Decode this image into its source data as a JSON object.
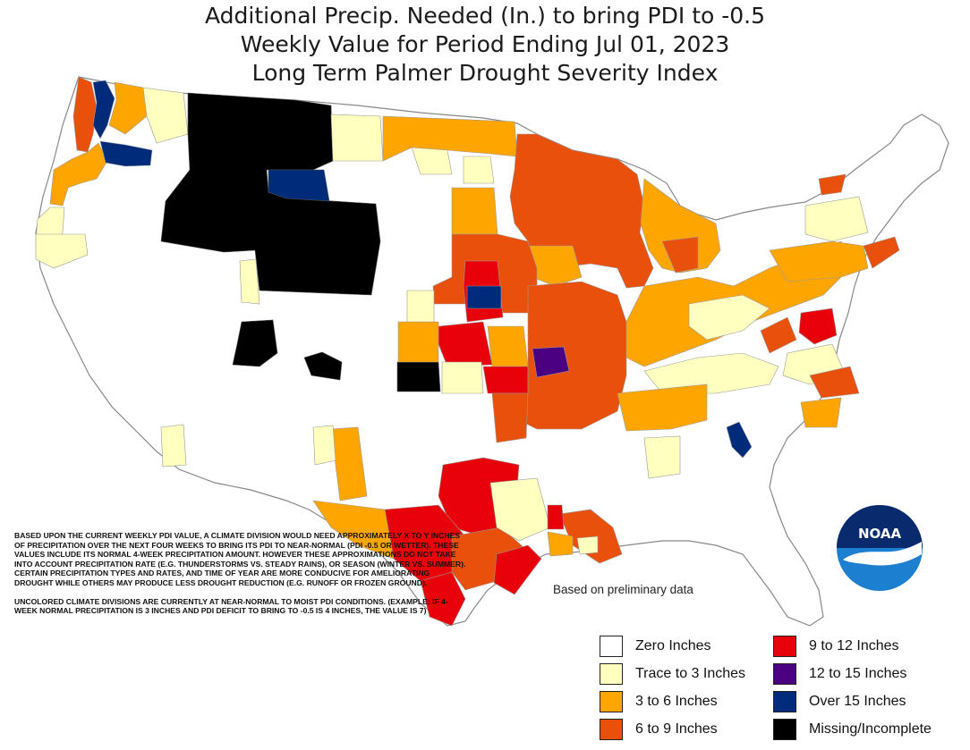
{
  "title": {
    "line1": "Additional Precip. Needed (In.) to bring PDI to -0.5",
    "line2": "Weekly Value for Period Ending Jul 01, 2023",
    "line3": "Long Term Palmer Drought Severity Index"
  },
  "note": {
    "paragraph1": "BASED UPON THE CURRENT WEEKLY PDI VALUE, A CLIMATE DIVISION WOULD NEED APPROXIMATELY X TO Y INCHES OF PRECIPITATION OVER THE NEXT FOUR WEEKS TO BRING ITS PDI TO NEAR-NORMAL (PDI -0.5 OR WETTER). THESE VALUES INCLUDE ITS NORMAL 4-WEEK PRECIPITATION AMOUNT. HOWEVER THESE APPROXIMATIONS DO NOT TAKE INTO ACCOUNT PRECIPITATION RATE (E.G. THUNDERSTORMS VS. STEADY RAINS), OR SEASON (WINTER VS. SUMMER). CERTAIN PRECIPITATION TYPES AND RATES, AND TIME OF YEAR ARE MORE CONDUCIVE FOR AMELIORATING DROUGHT WHILE OTHERS MAY PRODUCE LESS DROUGHT REDUCTION (E.G. RUNOFF OR FROZEN GROUND).",
    "paragraph2": "UNCOLORED CLIMATE DIVISIONS ARE CURRENTLY AT NEAR-NORMAL TO MOIST PDI CONDITIONS. (EXAMPLE: IF 4-WEEK NORMAL PRECIPITATION IS 3 INCHES AND PDI DEFICIT TO BRING TO -0.5 IS 4 INCHES, THE VALUE IS 7)"
  },
  "prelim_note": "Based on preliminary data",
  "logo_text": "NOAA",
  "legend": [
    {
      "label": "Zero Inches",
      "color": "#ffffff"
    },
    {
      "label": "Trace to 3 Inches",
      "color": "#ffffc0"
    },
    {
      "label": "3 to 6 Inches",
      "color": "#ffa500"
    },
    {
      "label": "6 to 9 Inches",
      "color": "#e8500c"
    },
    {
      "label": "9 to 12 Inches",
      "color": "#e8000a"
    },
    {
      "label": "12 to 15 Inches",
      "color": "#4b0082"
    },
    {
      "label": "Over 15 Inches",
      "color": "#002a7a"
    },
    {
      "label": "Missing/Incomplete",
      "color": "#000000"
    }
  ],
  "colors": {
    "zero": "#ffffff",
    "trace": "#ffffc0",
    "c3to6": "#ffa500",
    "c6to9": "#e8500c",
    "c9to12": "#e8000a",
    "c12to15": "#4b0082",
    "over15": "#002a7a",
    "missing": "#000000",
    "boundary": "#9a9a9a"
  }
}
